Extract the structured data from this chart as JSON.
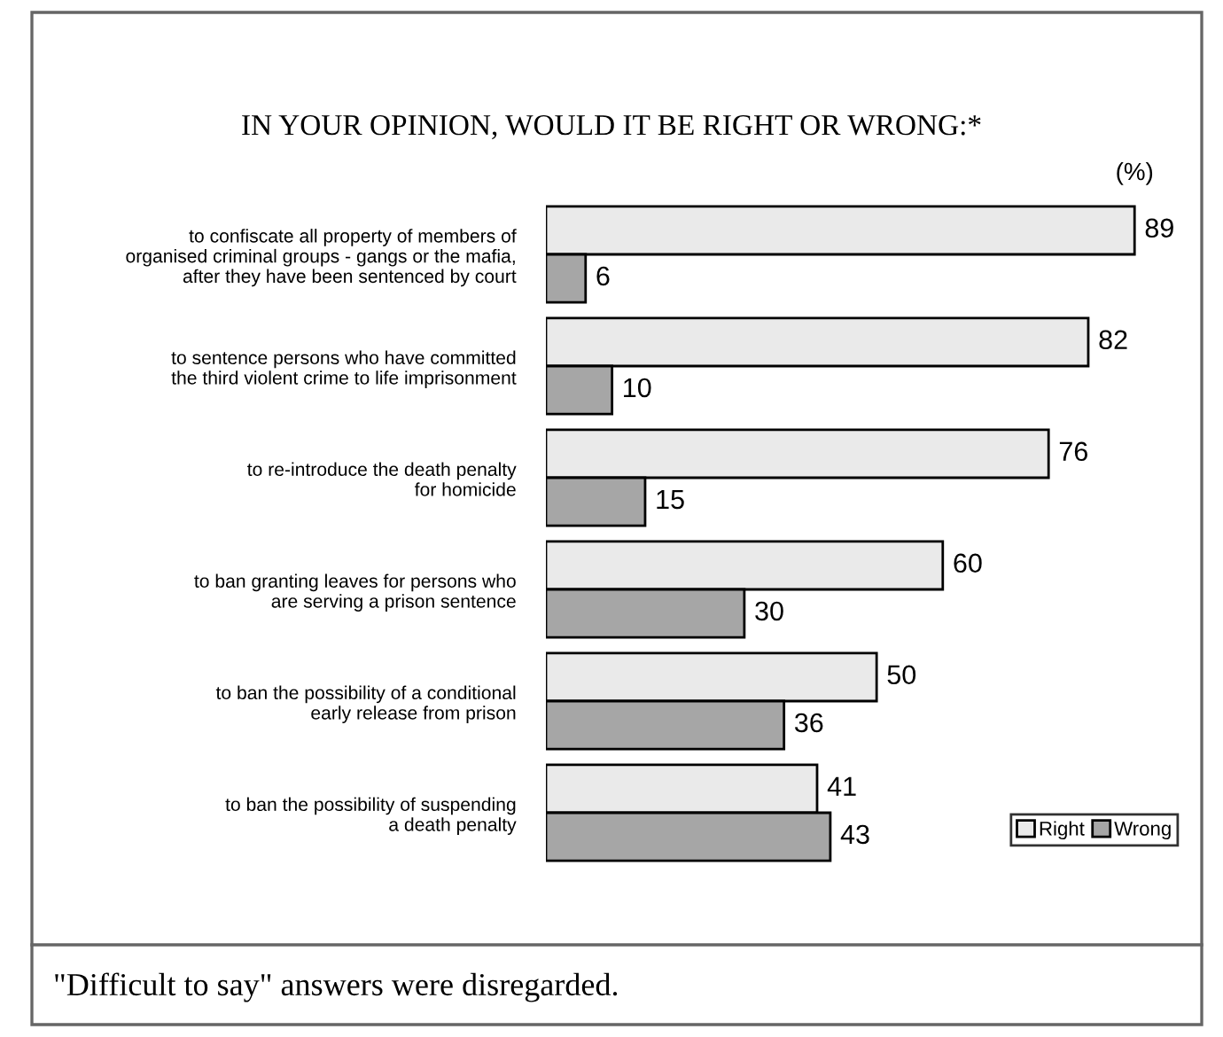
{
  "chart_data": {
    "type": "bar",
    "orientation": "horizontal",
    "title": "IN YOUR OPINION, WOULD IT BE RIGHT OR WRONG:*",
    "categories": [
      "to confiscate all property of members of\norganised criminal groups - gangs or the mafia,\nafter they have been sentenced by court",
      "to sentence persons who have committed\nthe third violent crime to life imprisonment",
      "to re-introduce the death penalty\nfor homicide",
      "to ban granting leaves for persons who\nare serving a prison sentence",
      "to ban the possibility of a conditional\nearly release from prison",
      "to ban the possibility of suspending\na death penalty"
    ],
    "series": [
      {
        "name": "Right",
        "color": "#eaeaea",
        "values": [
          89,
          82,
          76,
          60,
          50,
          41
        ]
      },
      {
        "name": "Wrong",
        "color": "#a6a6a6",
        "values": [
          6,
          10,
          15,
          30,
          36,
          43
        ]
      }
    ],
    "data_labels": true,
    "legend": "bottom right",
    "tick_labels": "y",
    "annotations": [
      "(%)",
      "\"Difficult to say\" answers were disregarded."
    ]
  }
}
